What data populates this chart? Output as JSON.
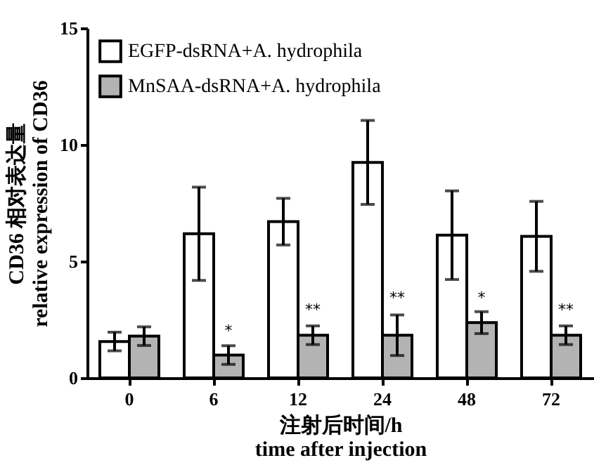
{
  "chart_data": {
    "type": "bar",
    "xlabel": "注射后时间/h\ntime after injection",
    "ylabel": "CD36 相对表达量\nrelative expression of CD36",
    "categories": [
      "0",
      "6",
      "12",
      "24",
      "48",
      "72"
    ],
    "series": [
      {
        "name": "EGFP-dsRNA+A. hydrophila",
        "color": "#ffffff",
        "values": [
          1.56,
          6.18,
          6.7,
          9.24,
          6.12,
          6.07
        ],
        "errors": [
          0.4,
          2.0,
          1.0,
          1.8,
          1.9,
          1.5
        ]
      },
      {
        "name": "MnSAA-dsRNA+A. hydrophila",
        "color": "#b3b3b3",
        "values": [
          1.79,
          0.98,
          1.83,
          1.83,
          2.37,
          1.83
        ],
        "errors": [
          0.4,
          0.4,
          0.4,
          0.87,
          0.47,
          0.4
        ]
      }
    ],
    "ylim": [
      0,
      15
    ],
    "yticks": [
      0,
      5,
      10,
      15
    ],
    "grid": false,
    "legend": "top left",
    "annotations": [
      {
        "text": "*",
        "x": "6",
        "y": 2.0
      },
      {
        "text": "**",
        "x": "12",
        "y": 2.9
      },
      {
        "text": "**",
        "x": "24",
        "y": 3.4
      },
      {
        "text": "*",
        "x": "48",
        "y": 3.4
      },
      {
        "text": "**",
        "x": "72",
        "y": 2.9
      }
    ]
  }
}
